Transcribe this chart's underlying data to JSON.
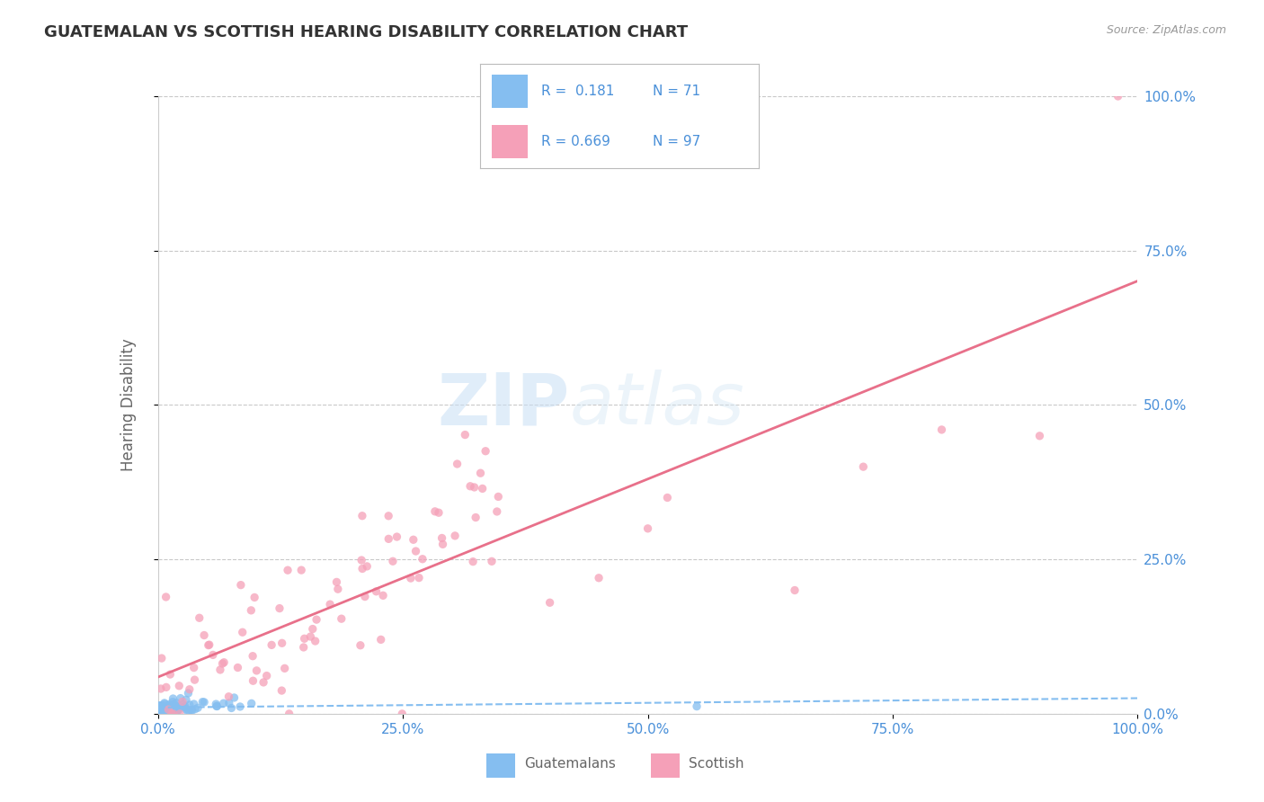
{
  "title": "GUATEMALAN VS SCOTTISH HEARING DISABILITY CORRELATION CHART",
  "source": "Source: ZipAtlas.com",
  "ylabel": "Hearing Disability",
  "watermark_zip": "ZIP",
  "watermark_atlas": "atlas",
  "xlim": [
    0,
    100
  ],
  "ylim": [
    0,
    100
  ],
  "xticks": [
    0,
    25,
    50,
    75,
    100
  ],
  "xtick_labels": [
    "0.0%",
    "25.0%",
    "50.0%",
    "75.0%",
    "100.0%"
  ],
  "yticks": [
    0,
    25,
    50,
    75,
    100
  ],
  "ytick_labels": [
    "0.0%",
    "25.0%",
    "50.0%",
    "75.0%",
    "100.0%"
  ],
  "guatemalan_color": "#85bef0",
  "scottish_color": "#f5a0b8",
  "guatemalan_line_color": "#85bef0",
  "scottish_line_color": "#e8708a",
  "legend_label_1": "Guatemalans",
  "legend_label_2": "Scottish",
  "R1": 0.181,
  "N1": 71,
  "R2": 0.669,
  "N2": 97,
  "background_color": "#ffffff",
  "grid_color": "#bbbbbb",
  "title_color": "#333333",
  "axis_label_color": "#666666",
  "tick_label_color": "#4a90d9",
  "legend_text_color": "#4a90d9"
}
